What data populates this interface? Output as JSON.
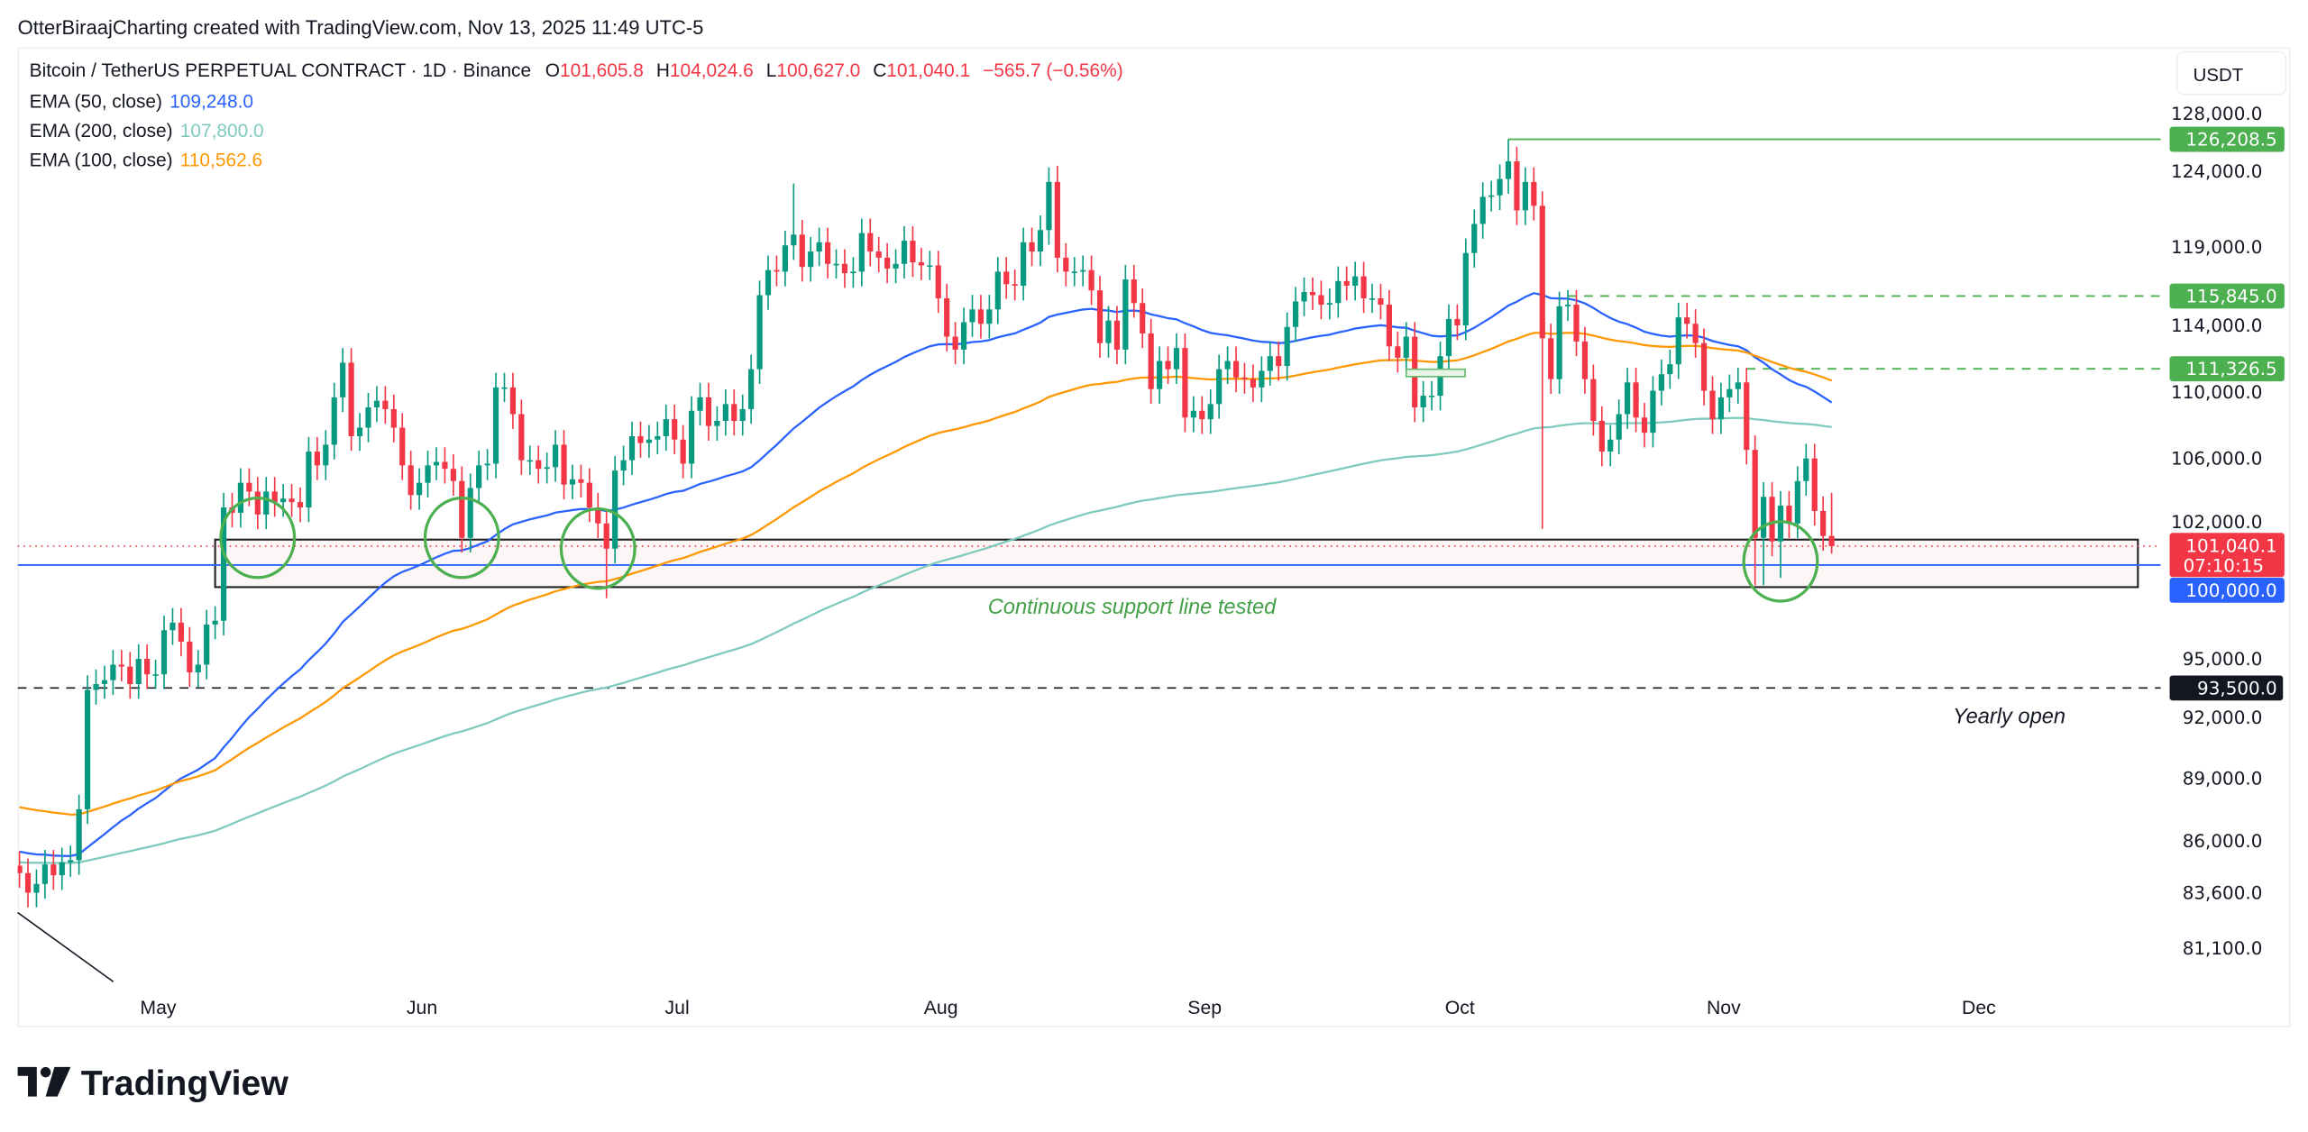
{
  "header": {
    "attribution": "OtterBiraajCharting created with TradingView.com, Nov 13, 2025 11:49 UTC-5"
  },
  "legend": {
    "symbol": "Bitcoin / TetherUS PERPETUAL CONTRACT · 1D · Binance",
    "open_label": "O",
    "open": "101,605.8",
    "high_label": "H",
    "high": "104,024.6",
    "low_label": "L",
    "low": "100,627.0",
    "close_label": "C",
    "close": "101,040.1",
    "change": "−565.7 (−0.56%)",
    "indicators": [
      {
        "label": "EMA (50, close)",
        "value": "109,248.0",
        "color": "#2962ff"
      },
      {
        "label": "EMA (200, close)",
        "value": "107,800.0",
        "color": "#7ecbbd"
      },
      {
        "label": "EMA (100, close)",
        "value": "110,562.6",
        "color": "#ff9800"
      }
    ]
  },
  "price_axis": {
    "currency": "USDT",
    "scale": "log",
    "ticks": [
      {
        "price": 128000,
        "label": "128,000.0"
      },
      {
        "price": 124000,
        "label": "124,000.0"
      },
      {
        "price": 119000,
        "label": "119,000.0"
      },
      {
        "price": 114000,
        "label": "114,000.0"
      },
      {
        "price": 110000,
        "label": "110,000.0"
      },
      {
        "price": 106000,
        "label": "106,000.0"
      },
      {
        "price": 102000,
        "label": "102,000.0"
      },
      {
        "price": 95000,
        "label": "95,000.0"
      },
      {
        "price": 92000,
        "label": "92,000.0"
      },
      {
        "price": 89000,
        "label": "89,000.0"
      },
      {
        "price": 86000,
        "label": "86,000.0"
      },
      {
        "price": 83600,
        "label": "83,600.0"
      },
      {
        "price": 81100,
        "label": "81,100.0"
      }
    ],
    "price_labels": [
      {
        "price": 126208.5,
        "label": "126,208.5",
        "color": "#4caf50"
      },
      {
        "price": 115845.0,
        "label": "115,845.0",
        "color": "#4caf50"
      },
      {
        "price": 111326.5,
        "label": "111,326.5",
        "color": "#4caf50"
      },
      {
        "price": 100000.0,
        "label": "100,000.0",
        "color": "#2962ff"
      },
      {
        "price": 93500.0,
        "label": "93,500.0",
        "color": "#131722"
      }
    ],
    "last_price": {
      "price": 101040.1,
      "label": "101,040.1",
      "countdown": "07:10:15",
      "color": "#f23645"
    }
  },
  "time_axis": {
    "ticks": [
      {
        "date": "2025-05-01",
        "label": "May"
      },
      {
        "date": "2025-06-01",
        "label": "Jun"
      },
      {
        "date": "2025-07-01",
        "label": "Jul"
      },
      {
        "date": "2025-08-01",
        "label": "Aug"
      },
      {
        "date": "2025-09-01",
        "label": "Sep"
      },
      {
        "date": "2025-10-01",
        "label": "Oct"
      },
      {
        "date": "2025-11-01",
        "label": "Nov"
      },
      {
        "date": "2025-12-01",
        "label": "Dec"
      }
    ]
  },
  "chart_data": {
    "type": "candlestick",
    "title": "",
    "xlabel": "",
    "ylabel": "",
    "ylim": [
      80000,
      129500
    ],
    "yscale": "log",
    "grid": false,
    "colors": {
      "up": "#089981",
      "down": "#f23645"
    },
    "start_date": "2025-04-14",
    "closes": [
      84500,
      83600,
      84000,
      84900,
      84400,
      85000,
      85100,
      87500,
      93400,
      93700,
      93900,
      94700,
      94600,
      93700,
      95000,
      94200,
      94200,
      96500,
      96900,
      95900,
      94300,
      94700,
      96800,
      97000,
      103200,
      102900,
      104600,
      104100,
      102800,
      104100,
      103500,
      103700,
      103500,
      103200,
      106400,
      105600,
      106800,
      109600,
      111700,
      107300,
      107800,
      109000,
      109400,
      108900,
      107800,
      105600,
      103900,
      104600,
      105600,
      105800,
      105400,
      104700,
      101500,
      104300,
      105600,
      105700,
      110200,
      110200,
      108600,
      105900,
      105900,
      105400,
      105500,
      106800,
      104500,
      104800,
      104600,
      103200,
      102300,
      100900,
      105300,
      105900,
      107300,
      106900,
      107100,
      107300,
      108300,
      107100,
      105700,
      108800,
      109600,
      107900,
      108200,
      109200,
      108200,
      108900,
      111300,
      115900,
      117500,
      117400,
      119100,
      119800,
      117700,
      118700,
      119300,
      117900,
      117900,
      117300,
      117400,
      119900,
      118700,
      118300,
      117600,
      117900,
      119400,
      118000,
      117800,
      117800,
      115700,
      113300,
      112500,
      114200,
      115000,
      114100,
      115000,
      117400,
      116600,
      116500,
      119300,
      118700,
      120100,
      123300,
      118300,
      117400,
      117400,
      117500,
      116200,
      112900,
      114300,
      112500,
      116900,
      115400,
      113500,
      110100,
      111800,
      111300,
      112600,
      108400,
      108800,
      108300,
      109200,
      111300,
      111800,
      110800,
      110700,
      110200,
      111200,
      112100,
      111500,
      113900,
      115500,
      116100,
      115900,
      115300,
      115400,
      116800,
      116500,
      117100,
      115700,
      115700,
      115300,
      112700,
      112000,
      113300,
      109000,
      109700,
      109700,
      112100,
      114400,
      114000,
      118600,
      120500,
      122300,
      122400,
      123500,
      124700,
      121400,
      123300,
      121700,
      113200,
      110700,
      115200,
      115300,
      113000,
      110700,
      108200,
      106400,
      107100,
      108600,
      110500,
      108400,
      107500,
      110000,
      111000,
      111600,
      114500,
      114100,
      112900,
      110000,
      108300,
      109600,
      110100,
      110500,
      106500,
      101500,
      103800,
      101300,
      103300,
      102300,
      104700,
      106000,
      103000,
      101600,
      101040.1
    ],
    "wick_extremes": [
      {
        "date": "2025-07-14",
        "high": 123200
      },
      {
        "date": "2025-08-14",
        "high": 124400
      },
      {
        "date": "2025-06-22",
        "low": 98200
      },
      {
        "date": "2025-10-06",
        "high": 126208.5
      },
      {
        "date": "2025-10-10",
        "low": 102000
      },
      {
        "date": "2025-11-04",
        "low": 98900
      },
      {
        "date": "2025-11-05",
        "low": 98900
      },
      {
        "date": "2025-11-07",
        "low": 99300
      },
      {
        "date": "2025-11-13",
        "open": 101605.8,
        "high": 104024.6,
        "low": 100627.0
      }
    ],
    "ema_series": [
      {
        "name": "EMA (50, close)",
        "period": 50,
        "start_value": 85500,
        "color": "#2962ff"
      },
      {
        "name": "EMA (100, close)",
        "period": 100,
        "start_value": 87600,
        "color": "#ff9800"
      },
      {
        "name": "EMA (200, close)",
        "period": 200,
        "start_value": 85000,
        "color": "#7ecbbd"
      }
    ]
  },
  "annotations": {
    "ath_line": {
      "price": 126208.5,
      "from": "2025-10-06",
      "color": "#4caf50"
    },
    "resistance_1": {
      "price": 115845.0,
      "from": "2025-10-13",
      "color": "#4caf50"
    },
    "resistance_2": {
      "price": 111326.5,
      "from": "2025-11-03",
      "color": "#4caf50"
    },
    "psych_level": {
      "price": 100000.0,
      "color": "#2962ff"
    },
    "yearly_open": {
      "price": 93500.0,
      "text": "Yearly open"
    },
    "support_zone": {
      "from": "2025-05-07",
      "to": "2025-12-19",
      "top": 101400,
      "bottom": 98800,
      "text": "Continuous support line tested"
    },
    "touch_circles": [
      {
        "date": "2025-05-12",
        "price": 101500
      },
      {
        "date": "2025-06-05",
        "price": 101500
      },
      {
        "date": "2025-06-21",
        "price": 100900
      },
      {
        "date": "2025-11-07",
        "price": 100200
      }
    ]
  },
  "footer": {
    "logo_text": "TradingView"
  }
}
